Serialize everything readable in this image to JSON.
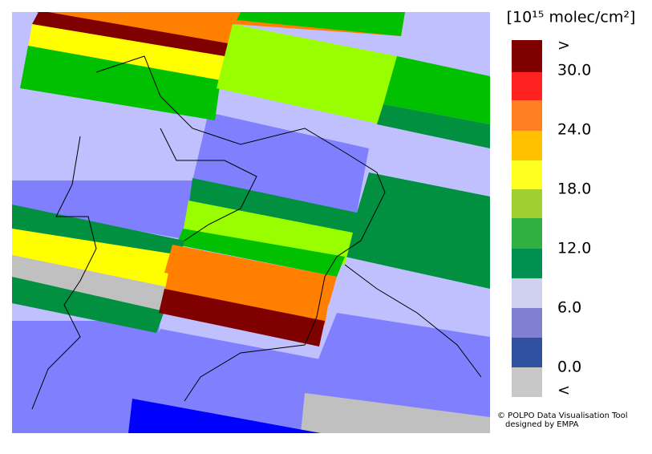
{
  "legend": {
    "title": "[10¹⁵ molec/cm²]",
    "labels": [
      ">",
      "30.0",
      "24.0",
      "18.0",
      "12.0",
      "6.0",
      "0.0",
      "<"
    ]
  },
  "credits": [
    "© POLPO Data Visualisation Tool",
    "designed by EMPA"
  ]
}
